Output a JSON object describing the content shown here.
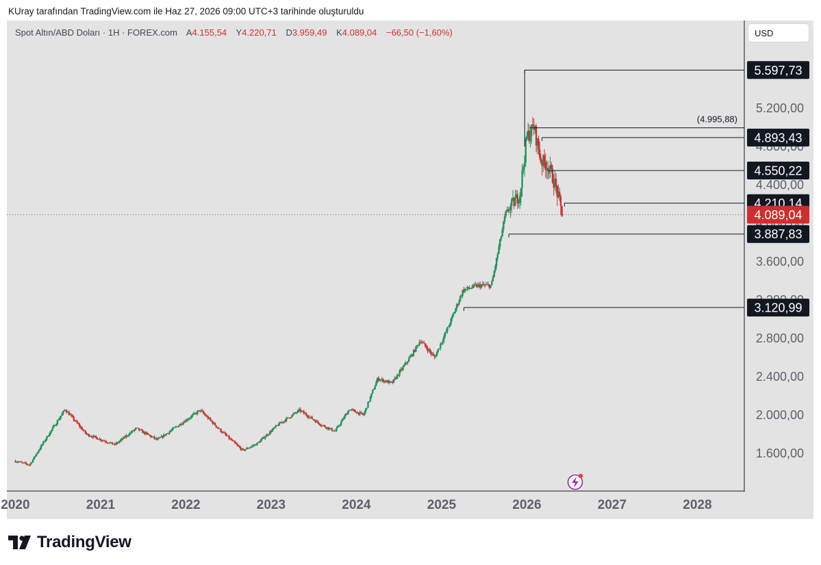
{
  "caption": "KUray tarafından TradingView.com ile Haz 27, 2026 09:00 UTC+3 tarihinde oluşturuldu",
  "symbol": {
    "name": "Spot Altın/ABD Doları · 1H · FOREX.com",
    "open_label": "A",
    "open": "4.155,54",
    "high_label": "Y",
    "high": "4.220,71",
    "low_label": "D",
    "low": "3.959,49",
    "close_label": "K",
    "close": "4.089,04",
    "change": "−66,50 (−1,60%)"
  },
  "currency_button": "USD",
  "brand": "TradingView",
  "colors": {
    "up": "#22925d",
    "down": "#d02e2e",
    "text": "#131722",
    "axis_text": "#5d606b",
    "background": "#e3e3e3"
  },
  "chart_data": {
    "type": "candlestick",
    "x_axis": {
      "labels": [
        "2020",
        "2021",
        "2022",
        "2023",
        "2024",
        "2025",
        "2026",
        "2027",
        "2028"
      ]
    },
    "y_axis": {
      "labels": [
        "1.600,00",
        "2.000,00",
        "2.400,00",
        "2.800,00",
        "3.200,00",
        "3.600,00",
        "4.000,00",
        "4.400,00",
        "4.800,00",
        "5.200,00"
      ],
      "ticks": [
        1600,
        2000,
        2400,
        2800,
        3200,
        3600,
        4000,
        4400,
        4800,
        5200
      ],
      "range": [
        1280,
        5690
      ]
    },
    "price_path": [
      [
        "2020-01",
        1520
      ],
      [
        "2020-03",
        1480
      ],
      [
        "2020-05",
        1720
      ],
      [
        "2020-08",
        2060
      ],
      [
        "2020-11",
        1800
      ],
      [
        "2021-03",
        1690
      ],
      [
        "2021-06",
        1860
      ],
      [
        "2021-09",
        1740
      ],
      [
        "2022-03",
        2050
      ],
      [
        "2022-06",
        1830
      ],
      [
        "2022-09",
        1630
      ],
      [
        "2022-11",
        1700
      ],
      [
        "2023-02",
        1900
      ],
      [
        "2023-05",
        2050
      ],
      [
        "2023-08",
        1900
      ],
      [
        "2023-10",
        1830
      ],
      [
        "2023-12",
        2060
      ],
      [
        "2024-02",
        2000
      ],
      [
        "2024-04",
        2380
      ],
      [
        "2024-06",
        2330
      ],
      [
        "2024-09",
        2650
      ],
      [
        "2024-10",
        2780
      ],
      [
        "2024-12",
        2600
      ],
      [
        "2025-02",
        2930
      ],
      [
        "2025-04",
        3300
      ],
      [
        "2025-06",
        3350
      ],
      [
        "2025-08",
        3350
      ],
      [
        "2025-10",
        4100
      ],
      [
        "2025-12",
        4300
      ],
      [
        "2026-01",
        4900
      ],
      [
        "2026-02",
        5000
      ],
      [
        "2026-03",
        4650
      ],
      [
        "2026-04",
        4600
      ],
      [
        "2026-05",
        4400
      ],
      [
        "2026-06",
        4089.04
      ]
    ],
    "last_price": 4089.04,
    "last_price_label": "4.089,04",
    "levels": [
      {
        "value": 5597.73,
        "label": "5.597,73",
        "start": "2025-12-22"
      },
      {
        "value": 4995.88,
        "label": "(4.995,88)",
        "start": "2026-01-15",
        "annotation": true
      },
      {
        "value": 4893.43,
        "label": "4.893,43",
        "start": "2026-03-05"
      },
      {
        "value": 4550.22,
        "label": "4.550,22",
        "start": "2026-04-05"
      },
      {
        "value": 4210.14,
        "label": "4.210,14",
        "start": "2026-06-10"
      },
      {
        "value": 3887.83,
        "label": "3.887,83",
        "start": "2025-10-15"
      },
      {
        "value": 3120.99,
        "label": "3.120,99",
        "start": "2025-04-05"
      }
    ]
  }
}
